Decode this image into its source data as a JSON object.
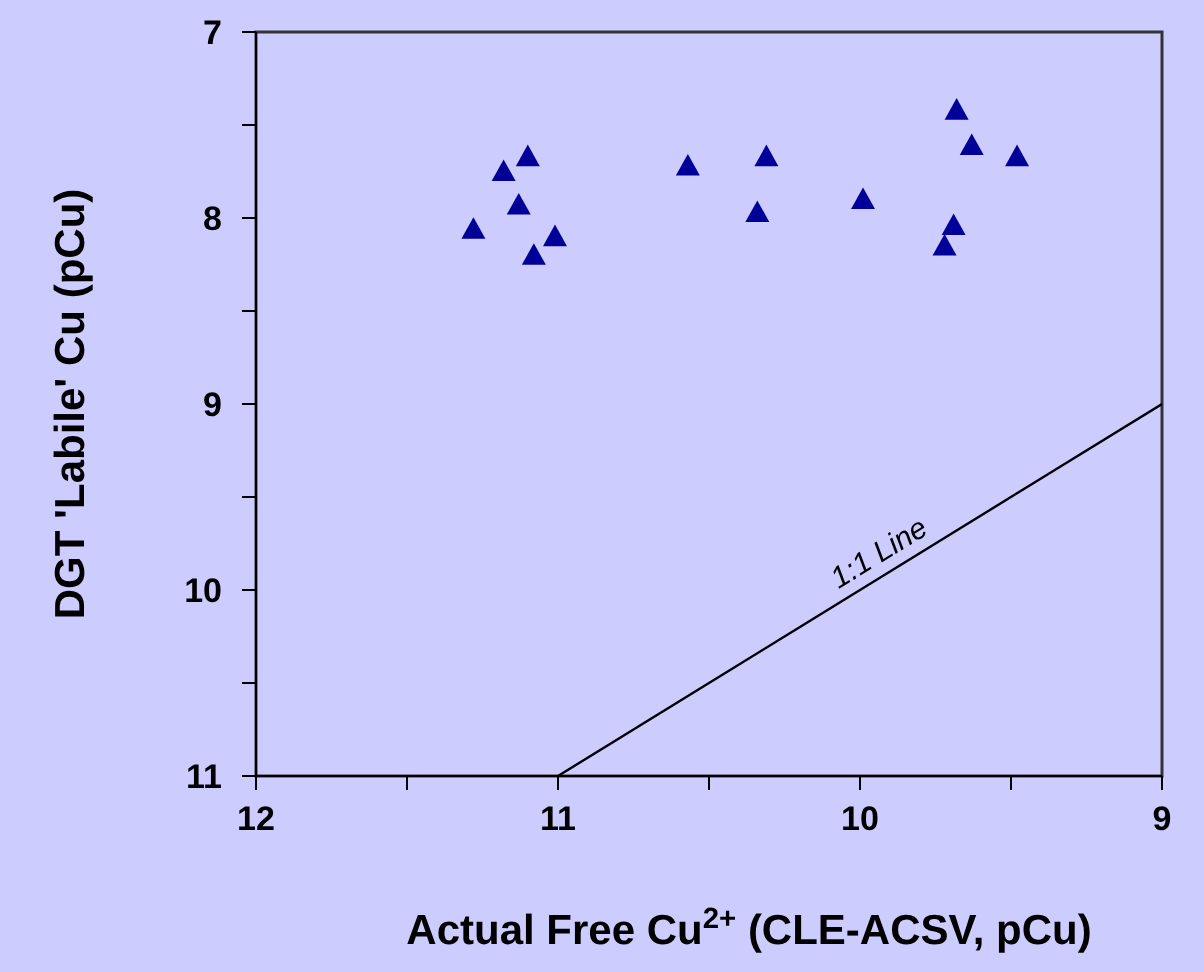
{
  "chart_data": {
    "type": "scatter",
    "xlabel": "Actual Free Cu$^{2+}$ (CLE-ACSV, pCu)",
    "ylabel": "DGT 'Labile' Cu (pCu)",
    "xlim": [
      12,
      9
    ],
    "ylim": [
      11,
      7
    ],
    "xticks": [
      12,
      {
        "value": 11.5,
        "label": null
      },
      11,
      {
        "value": 10.5,
        "label": null
      },
      10,
      {
        "value": 9.5,
        "label": null
      },
      9
    ],
    "yticks": [
      7,
      {
        "value": 7.5,
        "label": null
      },
      8,
      {
        "value": 8.5,
        "label": null
      },
      9,
      {
        "value": 9.5,
        "label": null
      },
      10,
      {
        "value": 10.5,
        "label": null
      },
      11
    ],
    "grid": false,
    "legend": false,
    "series": [
      {
        "type": "scatter",
        "color": "#000099",
        "marker": "triangle",
        "x": [
          11.28,
          11.18,
          11.1,
          11.13,
          11.08,
          11.01,
          10.57,
          10.31,
          10.34,
          9.99,
          9.68,
          9.63,
          9.48,
          9.69,
          9.72
        ],
        "values": [
          8.06,
          7.75,
          7.67,
          7.93,
          8.2,
          8.1,
          7.72,
          7.67,
          7.97,
          7.9,
          7.42,
          7.61,
          7.67,
          8.04,
          8.15
        ]
      },
      {
        "type": "line",
        "name": "1:1 Line",
        "color": "#000000",
        "marker": "none",
        "line_style": "solid",
        "x": [
          11,
          9
        ],
        "values": [
          11,
          9
        ]
      }
    ]
  }
}
